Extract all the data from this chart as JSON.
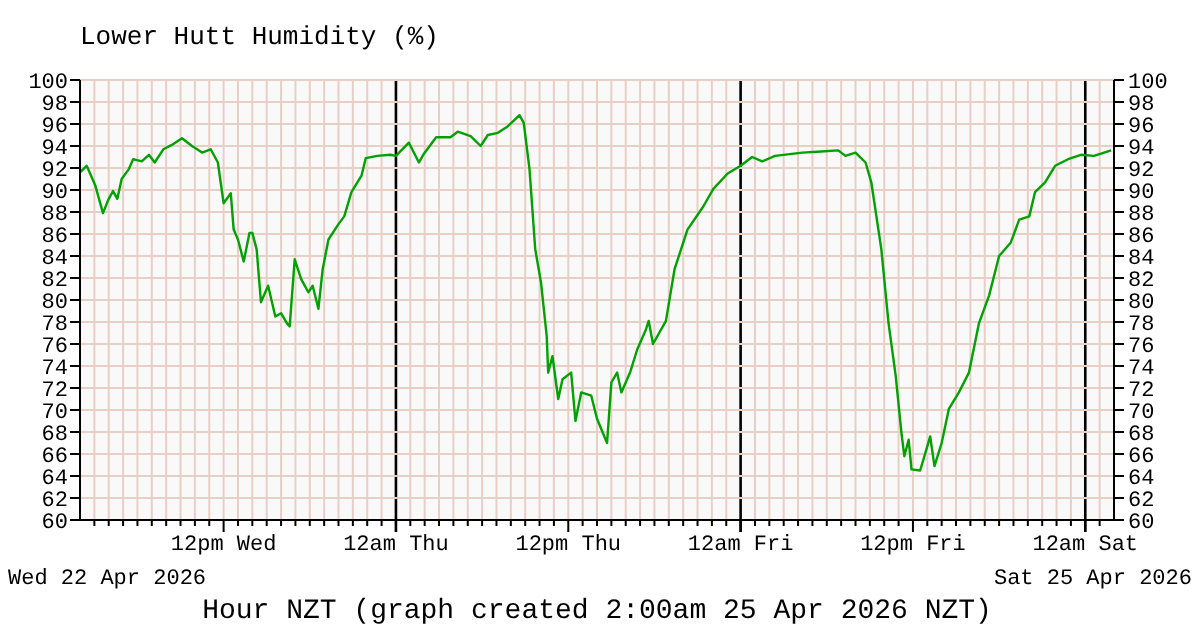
{
  "chart_data": {
    "type": "line",
    "title": "Lower Hutt Humidity (%)",
    "xlabel": "Hour NZT (graph created 2:00am 25 Apr 2026 NZT)",
    "annotations": [
      "Wed 22 Apr 2026",
      "Sat 25 Apr 2026"
    ],
    "x": [
      "2026-04-22T02:00",
      "2026-04-22T02:28",
      "2026-04-22T03:04",
      "2026-04-22T03:36",
      "2026-04-22T04:00",
      "2026-04-22T04:18",
      "2026-04-22T04:36",
      "2026-04-22T04:54",
      "2026-04-22T05:24",
      "2026-04-22T05:42",
      "2026-04-22T06:18",
      "2026-04-22T06:48",
      "2026-04-22T07:12",
      "2026-04-22T07:48",
      "2026-04-22T08:24",
      "2026-04-22T09:06",
      "2026-04-22T09:48",
      "2026-04-22T10:30",
      "2026-04-22T11:06",
      "2026-04-22T11:36",
      "2026-04-22T12:00",
      "2026-04-22T12:30",
      "2026-04-22T12:42",
      "2026-04-22T13:00",
      "2026-04-22T13:24",
      "2026-04-22T13:48",
      "2026-04-22T14:00",
      "2026-04-22T14:18",
      "2026-04-22T14:36",
      "2026-04-22T15:06",
      "2026-04-22T15:36",
      "2026-04-22T16:00",
      "2026-04-22T16:24",
      "2026-04-22T16:36",
      "2026-04-22T16:57",
      "2026-04-22T17:24",
      "2026-04-22T17:54",
      "2026-04-22T18:12",
      "2026-04-22T18:36",
      "2026-04-22T18:54",
      "2026-04-22T19:18",
      "2026-04-22T20:00",
      "2026-04-22T20:24",
      "2026-04-22T20:54",
      "2026-04-22T21:36",
      "2026-04-22T21:54",
      "2026-04-22T22:42",
      "2026-04-22T23:36",
      "2026-04-23T00:00",
      "2026-04-23T00:54",
      "2026-04-23T01:36",
      "2026-04-23T01:54",
      "2026-04-23T02:48",
      "2026-04-23T03:48",
      "2026-04-23T04:18",
      "2026-04-23T05:12",
      "2026-04-23T05:54",
      "2026-04-23T06:24",
      "2026-04-23T07:06",
      "2026-04-23T07:48",
      "2026-04-23T08:36",
      "2026-04-23T08:54",
      "2026-04-23T09:18",
      "2026-04-23T09:42",
      "2026-04-23T10:06",
      "2026-04-23T10:30",
      "2026-04-23T10:36",
      "2026-04-23T10:54",
      "2026-04-23T11:18",
      "2026-04-23T11:36",
      "2026-04-23T12:12",
      "2026-04-23T12:30",
      "2026-04-23T12:54",
      "2026-04-23T13:36",
      "2026-04-23T14:00",
      "2026-04-23T14:42",
      "2026-04-23T15:00",
      "2026-04-23T15:24",
      "2026-04-23T15:42",
      "2026-04-23T16:18",
      "2026-04-23T16:48",
      "2026-04-23T17:24",
      "2026-04-23T17:36",
      "2026-04-23T17:54",
      "2026-04-23T18:48",
      "2026-04-23T19:24",
      "2026-04-23T20:18",
      "2026-04-23T21:24",
      "2026-04-23T22:06",
      "2026-04-23T23:06",
      "2026-04-24T00:00",
      "2026-04-24T00:48",
      "2026-04-24T01:30",
      "2026-04-24T02:24",
      "2026-04-24T04:18",
      "2026-04-24T05:36",
      "2026-04-24T06:48",
      "2026-04-24T07:18",
      "2026-04-24T08:00",
      "2026-04-24T08:42",
      "2026-04-24T09:06",
      "2026-04-24T09:48",
      "2026-04-24T10:18",
      "2026-04-24T10:48",
      "2026-04-24T11:12",
      "2026-04-24T11:24",
      "2026-04-24T11:42",
      "2026-04-24T11:54",
      "2026-04-24T12:30",
      "2026-04-24T12:48",
      "2026-04-24T13:12",
      "2026-04-24T13:30",
      "2026-04-24T14:00",
      "2026-04-24T14:30",
      "2026-04-24T15:12",
      "2026-04-24T15:54",
      "2026-04-24T16:36",
      "2026-04-24T17:18",
      "2026-04-24T18:00",
      "2026-04-24T18:48",
      "2026-04-24T19:24",
      "2026-04-24T20:06",
      "2026-04-24T20:30",
      "2026-04-24T21:12",
      "2026-04-24T21:54",
      "2026-04-24T22:48",
      "2026-04-24T23:42",
      "2026-04-25T00:36",
      "2026-04-25T01:48"
    ],
    "series": [
      {
        "color": "#00a000",
        "values": [
          91.6,
          92.2,
          90.4,
          87.9,
          89.2,
          89.9,
          89.2,
          91,
          91.9,
          92.8,
          92.6,
          93.2,
          92.5,
          93.7,
          94.1,
          94.7,
          94,
          93.4,
          93.7,
          92.5,
          88.8,
          89.7,
          86.4,
          85.5,
          83.5,
          86.1,
          86.1,
          84.6,
          79.8,
          81.3,
          78.5,
          78.8,
          77.9,
          77.6,
          83.7,
          81.9,
          80.7,
          81.3,
          79.2,
          82.8,
          85.5,
          86.9,
          87.6,
          89.8,
          91.3,
          92.9,
          93.1,
          93.2,
          93.1,
          94.3,
          92.5,
          93.2,
          94.8,
          94.8,
          95.3,
          94.9,
          94,
          95,
          95.2,
          95.8,
          96.8,
          96.1,
          91.9,
          84.6,
          81.6,
          76.7,
          73.4,
          74.9,
          71,
          72.8,
          73.4,
          69,
          71.6,
          71.3,
          69.2,
          67,
          72.5,
          73.4,
          71.6,
          73.4,
          75.5,
          77.3,
          78.1,
          76,
          78.1,
          82.8,
          86.4,
          88.5,
          90.1,
          91.5,
          92.2,
          93,
          92.6,
          93.1,
          93.4,
          93.5,
          93.6,
          93.1,
          93.4,
          92.5,
          90.7,
          84.6,
          77.9,
          73.1,
          67.9,
          65.8,
          67.3,
          64.6,
          64.5,
          65.8,
          67.6,
          64.9,
          67,
          70.1,
          71.6,
          73.4,
          77.9,
          80.4,
          84,
          85.2,
          87.3,
          87.6,
          89.8,
          90.7,
          92.2,
          92.8,
          93.2,
          93.1,
          93.6
        ]
      }
    ],
    "xlim": [
      "2026-04-22T02:00",
      "2026-04-25T02:00"
    ],
    "xticks": [
      {
        "value": "2026-04-22T03:00",
        "label": null
      },
      {
        "value": "2026-04-22T04:00",
        "label": null
      },
      {
        "value": "2026-04-22T05:00",
        "label": null
      },
      {
        "value": "2026-04-22T06:00",
        "label": null
      },
      {
        "value": "2026-04-22T07:00",
        "label": null
      },
      {
        "value": "2026-04-22T08:00",
        "label": null
      },
      {
        "value": "2026-04-22T09:00",
        "label": null
      },
      {
        "value": "2026-04-22T10:00",
        "label": null
      },
      {
        "value": "2026-04-22T11:00",
        "label": null
      },
      {
        "value": "2026-04-22T12:00",
        "label": "12pm Wed"
      },
      {
        "value": "2026-04-22T13:00",
        "label": null
      },
      {
        "value": "2026-04-22T14:00",
        "label": null
      },
      {
        "value": "2026-04-22T15:00",
        "label": null
      },
      {
        "value": "2026-04-22T16:00",
        "label": null
      },
      {
        "value": "2026-04-22T17:00",
        "label": null
      },
      {
        "value": "2026-04-22T18:00",
        "label": null
      },
      {
        "value": "2026-04-22T19:00",
        "label": null
      },
      {
        "value": "2026-04-22T20:00",
        "label": null
      },
      {
        "value": "2026-04-22T21:00",
        "label": null
      },
      {
        "value": "2026-04-22T22:00",
        "label": null
      },
      {
        "value": "2026-04-22T23:00",
        "label": null
      },
      {
        "value": "2026-04-23T00:00",
        "label": "12am Thu"
      },
      {
        "value": "2026-04-23T01:00",
        "label": null
      },
      {
        "value": "2026-04-23T02:00",
        "label": null
      },
      {
        "value": "2026-04-23T03:00",
        "label": null
      },
      {
        "value": "2026-04-23T04:00",
        "label": null
      },
      {
        "value": "2026-04-23T05:00",
        "label": null
      },
      {
        "value": "2026-04-23T06:00",
        "label": null
      },
      {
        "value": "2026-04-23T07:00",
        "label": null
      },
      {
        "value": "2026-04-23T08:00",
        "label": null
      },
      {
        "value": "2026-04-23T09:00",
        "label": null
      },
      {
        "value": "2026-04-23T10:00",
        "label": null
      },
      {
        "value": "2026-04-23T11:00",
        "label": null
      },
      {
        "value": "2026-04-23T12:00",
        "label": "12pm Thu"
      },
      {
        "value": "2026-04-23T13:00",
        "label": null
      },
      {
        "value": "2026-04-23T14:00",
        "label": null
      },
      {
        "value": "2026-04-23T15:00",
        "label": null
      },
      {
        "value": "2026-04-23T16:00",
        "label": null
      },
      {
        "value": "2026-04-23T17:00",
        "label": null
      },
      {
        "value": "2026-04-23T18:00",
        "label": null
      },
      {
        "value": "2026-04-23T19:00",
        "label": null
      },
      {
        "value": "2026-04-23T20:00",
        "label": null
      },
      {
        "value": "2026-04-23T21:00",
        "label": null
      },
      {
        "value": "2026-04-23T22:00",
        "label": null
      },
      {
        "value": "2026-04-23T23:00",
        "label": null
      },
      {
        "value": "2026-04-24T00:00",
        "label": "12am Fri"
      },
      {
        "value": "2026-04-24T01:00",
        "label": null
      },
      {
        "value": "2026-04-24T02:00",
        "label": null
      },
      {
        "value": "2026-04-24T03:00",
        "label": null
      },
      {
        "value": "2026-04-24T04:00",
        "label": null
      },
      {
        "value": "2026-04-24T05:00",
        "label": null
      },
      {
        "value": "2026-04-24T06:00",
        "label": null
      },
      {
        "value": "2026-04-24T07:00",
        "label": null
      },
      {
        "value": "2026-04-24T08:00",
        "label": null
      },
      {
        "value": "2026-04-24T09:00",
        "label": null
      },
      {
        "value": "2026-04-24T10:00",
        "label": null
      },
      {
        "value": "2026-04-24T11:00",
        "label": null
      },
      {
        "value": "2026-04-24T12:00",
        "label": "12pm Fri"
      },
      {
        "value": "2026-04-24T13:00",
        "label": null
      },
      {
        "value": "2026-04-24T14:00",
        "label": null
      },
      {
        "value": "2026-04-24T15:00",
        "label": null
      },
      {
        "value": "2026-04-24T16:00",
        "label": null
      },
      {
        "value": "2026-04-24T17:00",
        "label": null
      },
      {
        "value": "2026-04-24T18:00",
        "label": null
      },
      {
        "value": "2026-04-24T19:00",
        "label": null
      },
      {
        "value": "2026-04-24T20:00",
        "label": null
      },
      {
        "value": "2026-04-24T21:00",
        "label": null
      },
      {
        "value": "2026-04-24T22:00",
        "label": null
      },
      {
        "value": "2026-04-24T23:00",
        "label": null
      },
      {
        "value": "2026-04-25T00:00",
        "label": "12am Sat"
      },
      {
        "value": "2026-04-25T01:00",
        "label": null
      }
    ],
    "ylim": [
      60,
      100
    ],
    "yticks": [
      60,
      62,
      64,
      66,
      68,
      70,
      72,
      74,
      76,
      78,
      80,
      82,
      84,
      86,
      88,
      90,
      92,
      94,
      96,
      98,
      100
    ],
    "y2lim": [
      60,
      100
    ],
    "y2ticks": [
      60,
      62,
      64,
      66,
      68,
      70,
      72,
      74,
      76,
      78,
      80,
      82,
      84,
      86,
      88,
      90,
      92,
      94,
      96,
      98,
      100
    ],
    "grid": true,
    "marker": "none",
    "line_style": "solid"
  }
}
